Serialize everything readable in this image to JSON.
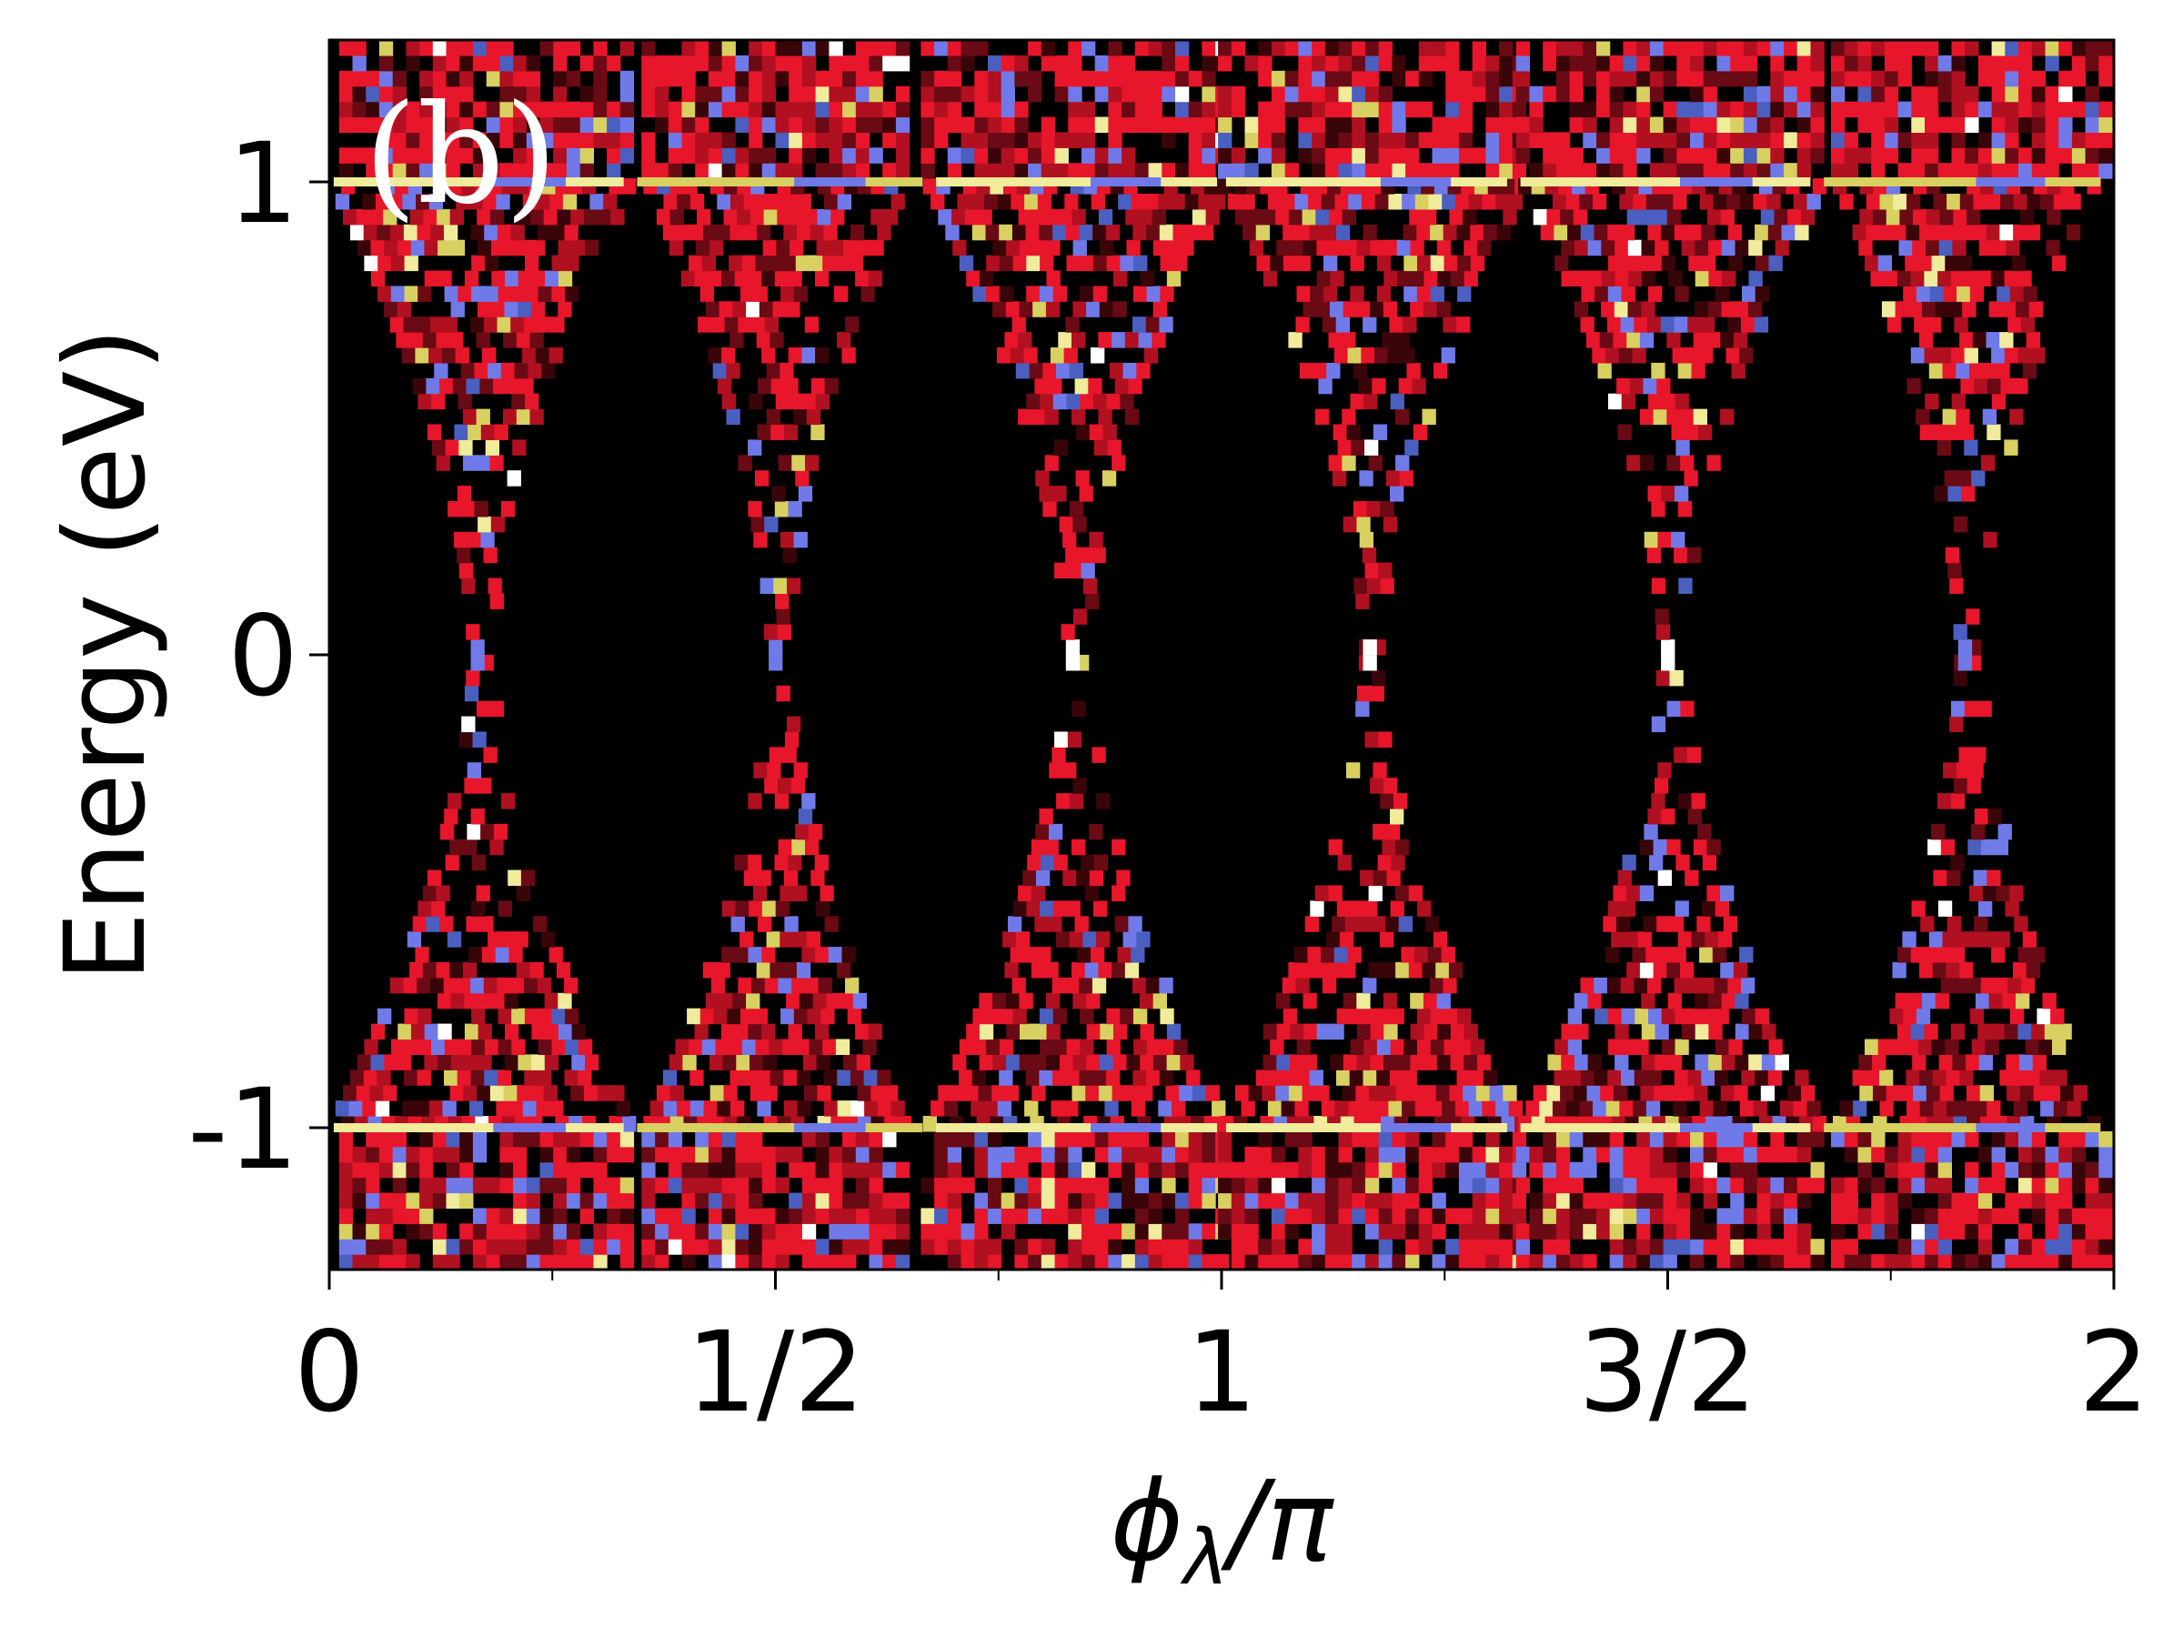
{
  "chart_data": {
    "type": "heatmap",
    "panel_label": "(b)",
    "xlabel": {
      "symbol": "ϕ",
      "subscript": "λ",
      "suffix": "/π"
    },
    "ylabel": "Energy (eV)",
    "xlim": [
      0,
      2
    ],
    "ylim": [
      -1.3,
      1.3
    ],
    "x_ticks": [
      {
        "value": 0,
        "label": "0"
      },
      {
        "value": 0.5,
        "label": "1/2"
      },
      {
        "value": 1,
        "label": "1"
      },
      {
        "value": 1.5,
        "label": "3/2"
      },
      {
        "value": 2,
        "label": "2"
      }
    ],
    "x_minor_ticks": [
      0.25,
      0.75,
      1.25,
      1.75
    ],
    "y_ticks": [
      {
        "value": 1,
        "label": "1"
      },
      {
        "value": 0,
        "label": "0"
      },
      {
        "value": -1,
        "label": "-1"
      }
    ],
    "background_color": "#000000",
    "colors": [
      "#e8162a",
      "#b01020",
      "#6a0a14",
      "#3a0508",
      "#6f7ae8",
      "#4a5fc0",
      "#d8d060",
      "#f0ec9c",
      "#ffffff"
    ],
    "band_centers": [
      0.166,
      0.5,
      0.833,
      1.166,
      1.5,
      1.833
    ],
    "band_max_halfwidth": [
      0.17,
      0.15,
      0.17,
      0.17,
      0.17,
      0.15
    ],
    "flat_bands": [
      1,
      -1
    ],
    "grid": false,
    "legend": "none"
  }
}
